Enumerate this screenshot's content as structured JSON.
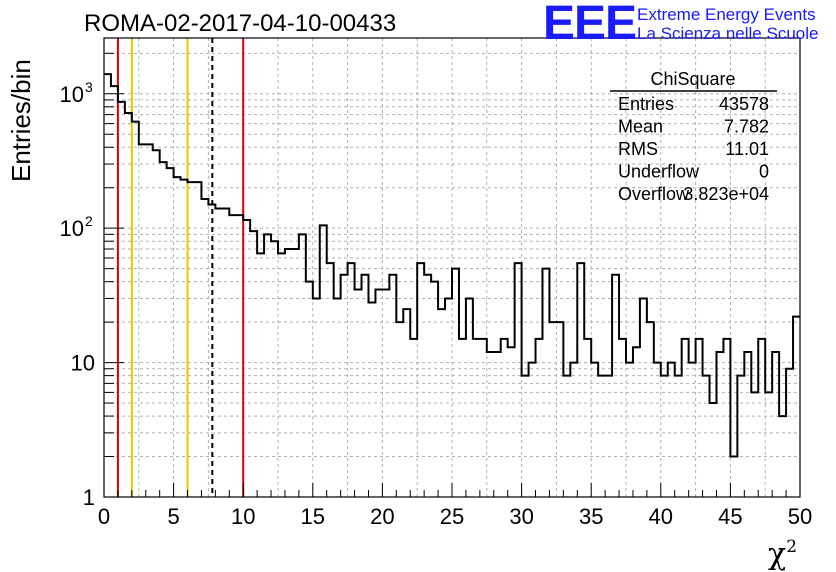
{
  "chart_data": {
    "type": "histogram",
    "title": "ROMA-02-2017-04-10-00433",
    "xlabel": "χ",
    "xlabel_superscript": "2",
    "ylabel": "Entries/bin",
    "xlim": [
      0,
      50
    ],
    "ylim": [
      1,
      2600
    ],
    "yscale": "log",
    "grid": true,
    "bin_width": 0.5,
    "x_ticks": [
      "0",
      "5",
      "10",
      "15",
      "20",
      "25",
      "30",
      "35",
      "40",
      "45",
      "50"
    ],
    "y_ticks": [
      {
        "value": 1,
        "label": "1"
      },
      {
        "value": 10,
        "label": "10"
      },
      {
        "value": 100,
        "label": "10",
        "exp": "2"
      },
      {
        "value": 1000,
        "label": "10",
        "exp": "3"
      }
    ],
    "counts": [
      1400,
      1140,
      870,
      720,
      620,
      420,
      420,
      380,
      310,
      280,
      240,
      230,
      220,
      220,
      165,
      150,
      140,
      140,
      125,
      125,
      115,
      95,
      65,
      90,
      80,
      65,
      70,
      70,
      90,
      40,
      30,
      105,
      55,
      30,
      45,
      55,
      35,
      45,
      28,
      35,
      35,
      45,
      20,
      25,
      15,
      55,
      45,
      40,
      25,
      30,
      50,
      15,
      30,
      15,
      15,
      12,
      12,
      15,
      13,
      55,
      8,
      10,
      15,
      50,
      20,
      20,
      8,
      10,
      55,
      15,
      10,
      8,
      8,
      45,
      15,
      10,
      13,
      30,
      20,
      10,
      8,
      10,
      8,
      15,
      10,
      15,
      8,
      5,
      12,
      15,
      2,
      8,
      12,
      6,
      15,
      6,
      12,
      4,
      9,
      22
    ],
    "vertical_lines": [
      {
        "x": 1,
        "color": "#dd0000",
        "style": "solid"
      },
      {
        "x": 2,
        "color": "#f2c100",
        "style": "solid"
      },
      {
        "x": 6,
        "color": "#f2c100",
        "style": "solid"
      },
      {
        "x": 7.782,
        "color": "#000000",
        "style": "dashed"
      },
      {
        "x": 10,
        "color": "#dd0000",
        "style": "solid"
      }
    ],
    "stats_box": {
      "title": "ChiSquare",
      "rows": [
        {
          "label": "Entries",
          "value": "43578"
        },
        {
          "label": "Mean",
          "value": "7.782"
        },
        {
          "label": "RMS",
          "value": "11.01"
        },
        {
          "label": "Underflow",
          "value": "0"
        },
        {
          "label": "Overflow",
          "value": "3.823e+04"
        }
      ]
    }
  },
  "logo": {
    "mark": "EEE",
    "line1": "Extreme Energy Events",
    "line2": "La Scienza nelle Scuole",
    "color": "#1a1aff"
  }
}
